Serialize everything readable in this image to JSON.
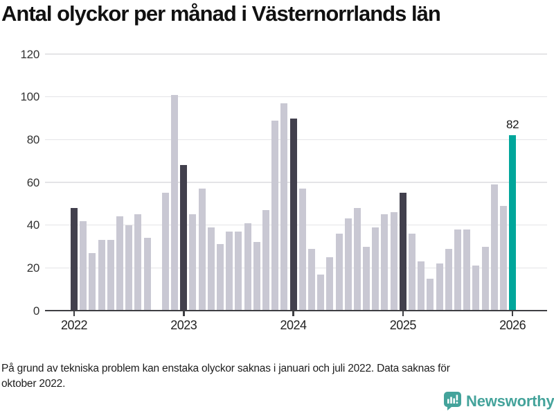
{
  "chart_data": {
    "type": "bar",
    "title": "Antal olyckor per månad i Västernorrlands län",
    "x_tick_labels": [
      "2022",
      "2023",
      "2024",
      "2025",
      "2026"
    ],
    "y_ticks": [
      0,
      20,
      40,
      60,
      80,
      100,
      120
    ],
    "ylim": [
      0,
      120
    ],
    "grid": true,
    "legend": false,
    "colors": {
      "default": "#c9c8d3",
      "january": "#42404d",
      "latest": "#00a69b",
      "logo": "#44a39b",
      "axis": "#3e3e42"
    },
    "points": [
      {
        "month": "2022-01",
        "value": 48,
        "role": "january"
      },
      {
        "month": "2022-02",
        "value": 42,
        "role": "default"
      },
      {
        "month": "2022-03",
        "value": 27,
        "role": "default"
      },
      {
        "month": "2022-04",
        "value": 33,
        "role": "default"
      },
      {
        "month": "2022-05",
        "value": 33,
        "role": "default"
      },
      {
        "month": "2022-06",
        "value": 44,
        "role": "default"
      },
      {
        "month": "2022-07",
        "value": 40,
        "role": "default"
      },
      {
        "month": "2022-08",
        "value": 45,
        "role": "default"
      },
      {
        "month": "2022-09",
        "value": 34,
        "role": "default"
      },
      {
        "month": "2022-10",
        "value": null,
        "role": "missing"
      },
      {
        "month": "2022-11",
        "value": 55,
        "role": "default"
      },
      {
        "month": "2022-12",
        "value": 101,
        "role": "default"
      },
      {
        "month": "2023-01",
        "value": 68,
        "role": "january"
      },
      {
        "month": "2023-02",
        "value": 45,
        "role": "default"
      },
      {
        "month": "2023-03",
        "value": 57,
        "role": "default"
      },
      {
        "month": "2023-04",
        "value": 39,
        "role": "default"
      },
      {
        "month": "2023-05",
        "value": 31,
        "role": "default"
      },
      {
        "month": "2023-06",
        "value": 37,
        "role": "default"
      },
      {
        "month": "2023-07",
        "value": 37,
        "role": "default"
      },
      {
        "month": "2023-08",
        "value": 41,
        "role": "default"
      },
      {
        "month": "2023-09",
        "value": 32,
        "role": "default"
      },
      {
        "month": "2023-10",
        "value": 47,
        "role": "default"
      },
      {
        "month": "2023-11",
        "value": 89,
        "role": "default"
      },
      {
        "month": "2023-12",
        "value": 97,
        "role": "default"
      },
      {
        "month": "2024-01",
        "value": 90,
        "role": "january"
      },
      {
        "month": "2024-02",
        "value": 57,
        "role": "default"
      },
      {
        "month": "2024-03",
        "value": 29,
        "role": "default"
      },
      {
        "month": "2024-04",
        "value": 17,
        "role": "default"
      },
      {
        "month": "2024-05",
        "value": 25,
        "role": "default"
      },
      {
        "month": "2024-06",
        "value": 36,
        "role": "default"
      },
      {
        "month": "2024-07",
        "value": 43,
        "role": "default"
      },
      {
        "month": "2024-08",
        "value": 48,
        "role": "default"
      },
      {
        "month": "2024-09",
        "value": 30,
        "role": "default"
      },
      {
        "month": "2024-10",
        "value": 39,
        "role": "default"
      },
      {
        "month": "2024-11",
        "value": 45,
        "role": "default"
      },
      {
        "month": "2024-12",
        "value": 46,
        "role": "default"
      },
      {
        "month": "2025-01",
        "value": 55,
        "role": "january"
      },
      {
        "month": "2025-02",
        "value": 36,
        "role": "default"
      },
      {
        "month": "2025-03",
        "value": 23,
        "role": "default"
      },
      {
        "month": "2025-04",
        "value": 15,
        "role": "default"
      },
      {
        "month": "2025-05",
        "value": 22,
        "role": "default"
      },
      {
        "month": "2025-06",
        "value": 29,
        "role": "default"
      },
      {
        "month": "2025-07",
        "value": 38,
        "role": "default"
      },
      {
        "month": "2025-08",
        "value": 38,
        "role": "default"
      },
      {
        "month": "2025-09",
        "value": 21,
        "role": "default"
      },
      {
        "month": "2025-10",
        "value": 30,
        "role": "default"
      },
      {
        "month": "2025-11",
        "value": 59,
        "role": "default"
      },
      {
        "month": "2025-12",
        "value": 49,
        "role": "default"
      },
      {
        "month": "2026-01",
        "value": 82,
        "role": "latest",
        "label": "82"
      }
    ],
    "footnote": "På grund av tekniska problem kan enstaka olyckor saknas i januari och juli 2022. Data saknas för\noktober 2022.",
    "logo_text": "Newsworthy"
  }
}
